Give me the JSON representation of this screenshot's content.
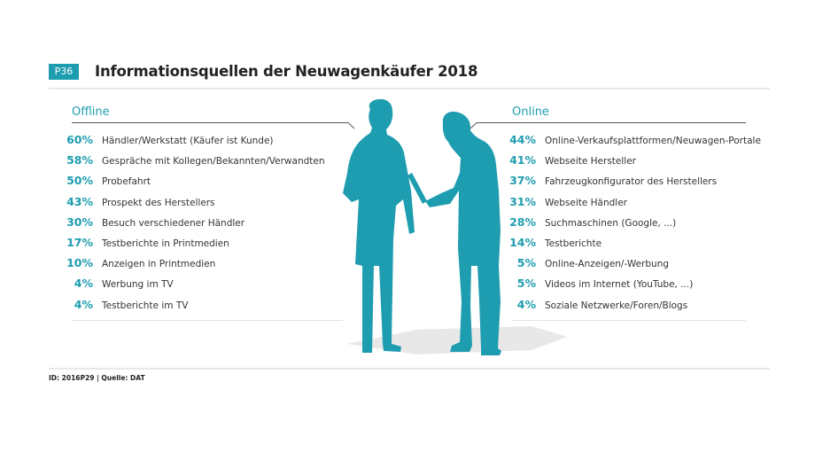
{
  "header": {
    "badge": "P36",
    "title": "Informationsquellen der Neuwagenkäufer 2018"
  },
  "chart_data": {
    "type": "table",
    "panels": [
      {
        "name": "Offline",
        "items": [
          {
            "value": 60,
            "label": "Händler/Werkstatt (Käufer ist Kunde)"
          },
          {
            "value": 58,
            "label": "Gespräche mit Kollegen/Bekannten/Verwandten"
          },
          {
            "value": 50,
            "label": "Probefahrt"
          },
          {
            "value": 43,
            "label": "Prospekt des Herstellers"
          },
          {
            "value": 30,
            "label": "Besuch verschiedener Händler"
          },
          {
            "value": 17,
            "label": "Testberichte in Printmedien"
          },
          {
            "value": 10,
            "label": "Anzeigen in Printmedien"
          },
          {
            "value": 4,
            "label": "Werbung im TV"
          },
          {
            "value": 4,
            "label": "Testberichte im TV"
          }
        ]
      },
      {
        "name": "Online",
        "items": [
          {
            "value": 44,
            "label": "Online-Verkaufsplattformen/Neuwagen-Portale"
          },
          {
            "value": 41,
            "label": "Webseite Hersteller"
          },
          {
            "value": 37,
            "label": "Fahrzeugkonfigurator des Herstellers"
          },
          {
            "value": 31,
            "label": "Webseite Händler"
          },
          {
            "value": 28,
            "label": "Suchmaschinen (Google, ...)"
          },
          {
            "value": 14,
            "label": "Testberichte"
          },
          {
            "value": 5,
            "label": "Online-Anzeigen/-Werbung"
          },
          {
            "value": 5,
            "label": "Videos im Internet (YouTube, ...)"
          },
          {
            "value": 4,
            "label": "Soziale Netzwerke/Foren/Blogs"
          }
        ]
      }
    ],
    "unit": "%"
  },
  "footer": {
    "source": "ID: 2016P29 | Quelle: DAT"
  },
  "colors": {
    "accent": "#1f9db0",
    "shadow": "#e6e6e6",
    "text": "#333333"
  }
}
